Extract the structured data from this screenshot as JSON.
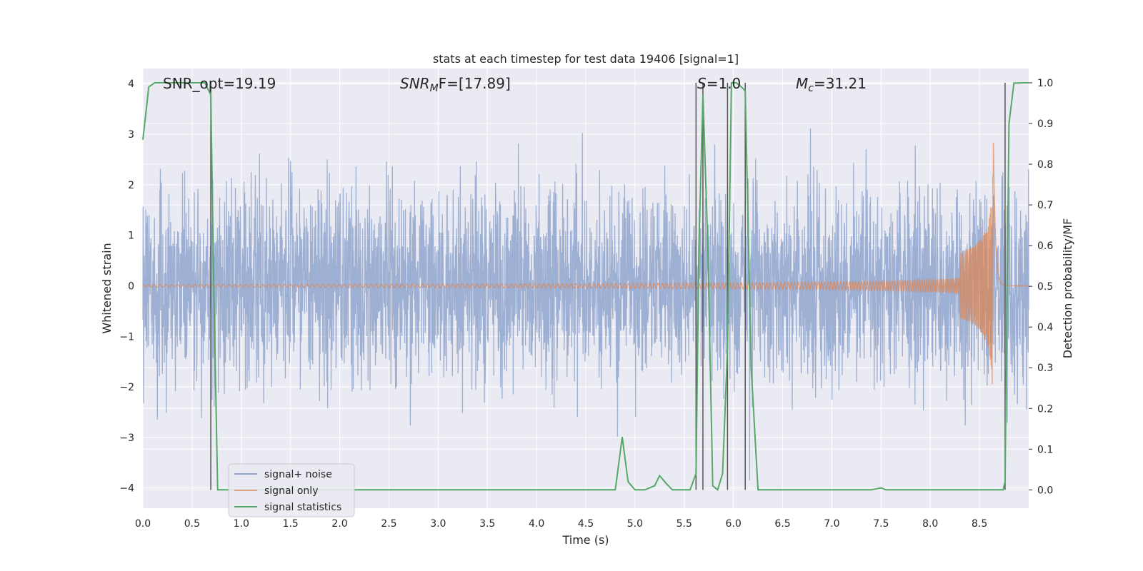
{
  "chart_data": {
    "type": "line",
    "title": "stats at each timestep for test data 19406 [signal=1]",
    "xlabel": "Time (s)",
    "ylabel": "Whitened strain",
    "y2label": "Detection probability/MF",
    "xlim": [
      0.0,
      9.0
    ],
    "ylim": [
      -4.4,
      4.3
    ],
    "y2lim": [
      -0.045,
      1.035
    ],
    "xticks": [
      "0.0",
      "0.5",
      "1.0",
      "1.5",
      "2.0",
      "2.5",
      "3.0",
      "3.5",
      "4.0",
      "4.5",
      "5.0",
      "5.5",
      "6.0",
      "6.5",
      "7.0",
      "7.5",
      "8.0",
      "8.5"
    ],
    "xtick_values": [
      0.0,
      0.5,
      1.0,
      1.5,
      2.0,
      2.5,
      3.0,
      3.5,
      4.0,
      4.5,
      5.0,
      5.5,
      6.0,
      6.5,
      7.0,
      7.5,
      8.0,
      8.5
    ],
    "yticks": [
      "4",
      "3",
      "2",
      "1",
      "0",
      "−1",
      "−2",
      "−3",
      "−4"
    ],
    "ytick_values": [
      4,
      3,
      2,
      1,
      0,
      -1,
      -2,
      -3,
      -4
    ],
    "y2ticks": [
      "1.0",
      "0.9",
      "0.8",
      "0.7",
      "0.6",
      "0.5",
      "0.4",
      "0.3",
      "0.2",
      "0.1",
      "0.0"
    ],
    "y2tick_values": [
      1.0,
      0.9,
      0.8,
      0.7,
      0.6,
      0.5,
      0.4,
      0.3,
      0.2,
      0.1,
      0.0
    ],
    "grid": true,
    "legend_placement": "lower-left",
    "legend": [
      "signal+ noise",
      "signal only",
      "signal statistics"
    ],
    "annotations": {
      "snr_opt": "SNR_opt=19.19",
      "snr_mf_main": "SNR",
      "snr_mf_sub": "M",
      "snr_mf_rest": "F=[17.89]",
      "s_main": "S",
      "s_rest": "=1.0",
      "mc_main": "M",
      "mc_sub": "c",
      "mc_rest": "=31.21"
    },
    "colors": {
      "noise": "#8fa5cc",
      "signal": "#dd8452",
      "stats": "#55a868",
      "vlines": "#555555",
      "background": "#eaeaf2",
      "grid": "#ffffff"
    },
    "vertical_lines_x": [
      0.69,
      5.62,
      5.69,
      5.94,
      6.12,
      8.76
    ],
    "series": [
      {
        "name": "signal statistics",
        "x": [
          0.0,
          0.06,
          0.12,
          0.2,
          0.3,
          0.4,
          0.5,
          0.58,
          0.63,
          0.69,
          0.72,
          0.76,
          0.8,
          1.0,
          2.0,
          3.0,
          4.0,
          4.5,
          4.8,
          4.87,
          4.93,
          5.0,
          5.1,
          5.2,
          5.25,
          5.32,
          5.38,
          5.5,
          5.56,
          5.62,
          5.65,
          5.69,
          5.74,
          5.79,
          5.84,
          5.89,
          5.94,
          5.98,
          6.03,
          6.08,
          6.12,
          6.18,
          6.25,
          6.4,
          7.0,
          7.4,
          7.5,
          7.55,
          8.0,
          8.7,
          8.74,
          8.76,
          8.8,
          8.85,
          8.95,
          9.0
        ],
        "y": [
          0.86,
          0.99,
          1.0,
          1.0,
          1.0,
          1.0,
          1.0,
          1.0,
          1.0,
          0.97,
          0.5,
          0.0,
          0.0,
          0.0,
          0.0,
          0.0,
          0.0,
          0.0,
          0.0,
          0.13,
          0.02,
          0.0,
          0.0,
          0.01,
          0.035,
          0.015,
          0.0,
          0.0,
          0.0,
          0.04,
          0.6,
          0.97,
          0.6,
          0.01,
          0.0,
          0.04,
          0.35,
          1.0,
          1.0,
          0.99,
          0.98,
          0.3,
          0.0,
          0.0,
          0.0,
          0.0,
          0.005,
          0.0,
          0.0,
          0.0,
          0.0,
          0.02,
          0.9,
          0.999,
          1.0,
          1.0
        ]
      }
    ]
  }
}
